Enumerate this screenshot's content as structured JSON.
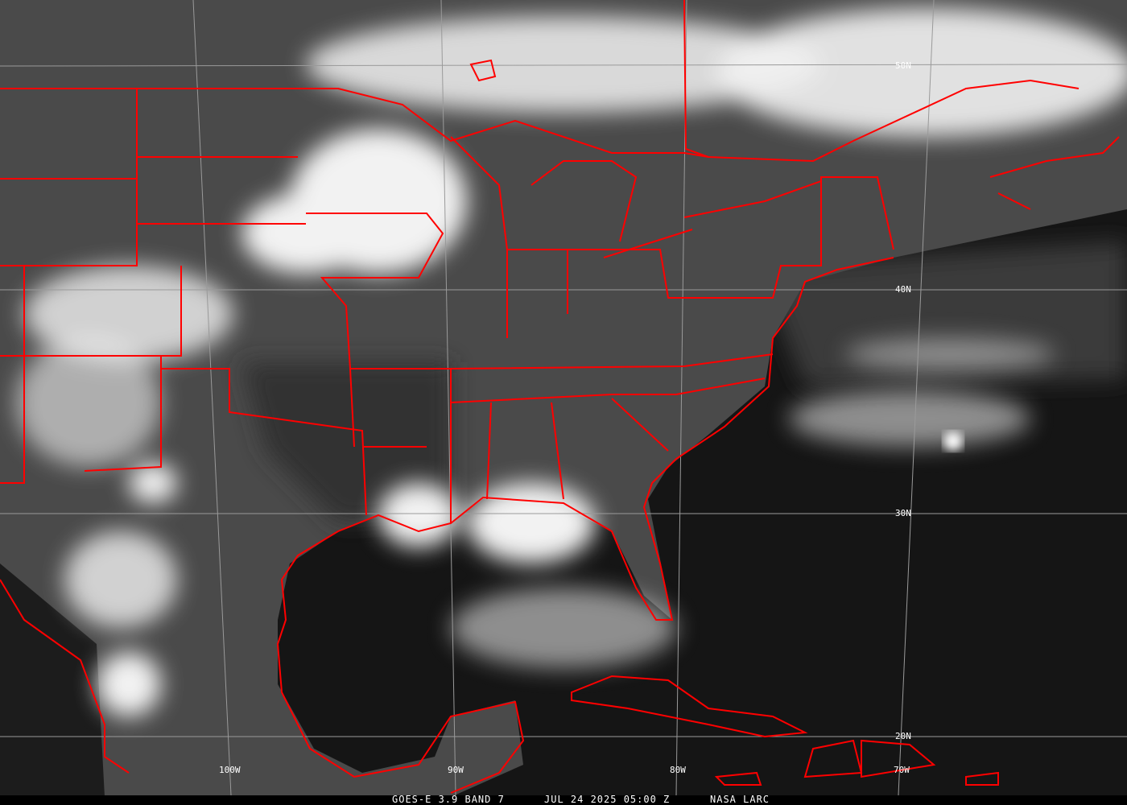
{
  "caption": {
    "satellite_band": "GOES-E 3.9 BAND 7",
    "datetime": "JUL 24 2025 05:00 Z",
    "credit": "NASA LARC"
  },
  "grid": {
    "latitudes": [
      "50N",
      "40N",
      "30N",
      "20N"
    ],
    "longitudes": [
      "100W",
      "90W",
      "80W",
      "70W"
    ]
  },
  "colors": {
    "boundaries": "#ff0000",
    "grid": "#9a9a9a",
    "clouds": "#f2f2f2",
    "land": "#4a4a4a",
    "ocean": "#141414"
  }
}
